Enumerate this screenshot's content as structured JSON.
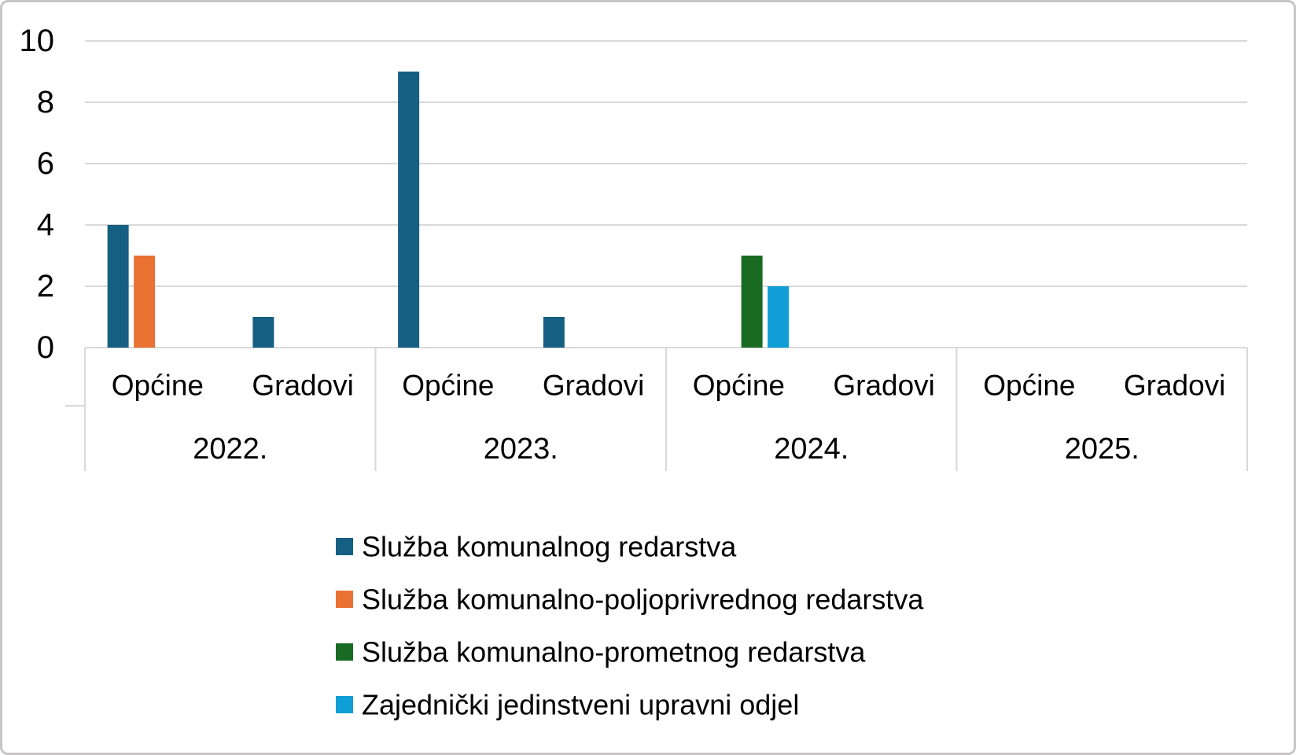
{
  "chart_data": {
    "type": "bar",
    "title": "",
    "xlabel": "",
    "ylabel": "",
    "ylim": [
      0,
      10
    ],
    "y_ticks": [
      0,
      2,
      4,
      6,
      8,
      10
    ],
    "grid": "horizontal",
    "legend_position": "bottom",
    "group_labels": [
      "2022.",
      "2023.",
      "2024.",
      "2025."
    ],
    "sub_labels": [
      "Općine",
      "Gradovi"
    ],
    "categories": [
      "2022. Općine",
      "2022. Gradovi",
      "2023. Općine",
      "2023. Gradovi",
      "2024. Općine",
      "2024. Gradovi",
      "2025. Općine",
      "2025. Gradovi"
    ],
    "series": [
      {
        "name": "Služba komunalnog redarstva",
        "color": "#156082",
        "values": [
          4,
          1,
          9,
          1,
          0,
          0,
          0,
          0
        ]
      },
      {
        "name": "Služba komunalno-poljoprivrednog redarstva",
        "color": "#E97132",
        "values": [
          3,
          0,
          0,
          0,
          0,
          0,
          0,
          0
        ]
      },
      {
        "name": "Služba komunalno-prometnog redarstva",
        "color": "#196B24",
        "values": [
          0,
          0,
          0,
          0,
          3,
          0,
          0,
          0
        ]
      },
      {
        "name": "Zajednički jedinstveni upravni odjel",
        "color": "#0F9ED5",
        "values": [
          0,
          0,
          0,
          0,
          2,
          0,
          0,
          0
        ]
      }
    ]
  },
  "colors": {
    "gridline": "#D9D9D9",
    "axis_line": "#D9D9D9",
    "separator": "#D9D9D9",
    "text": "#000000",
    "frame_border": "#C7C5C5",
    "background": "#FFFFFF"
  }
}
